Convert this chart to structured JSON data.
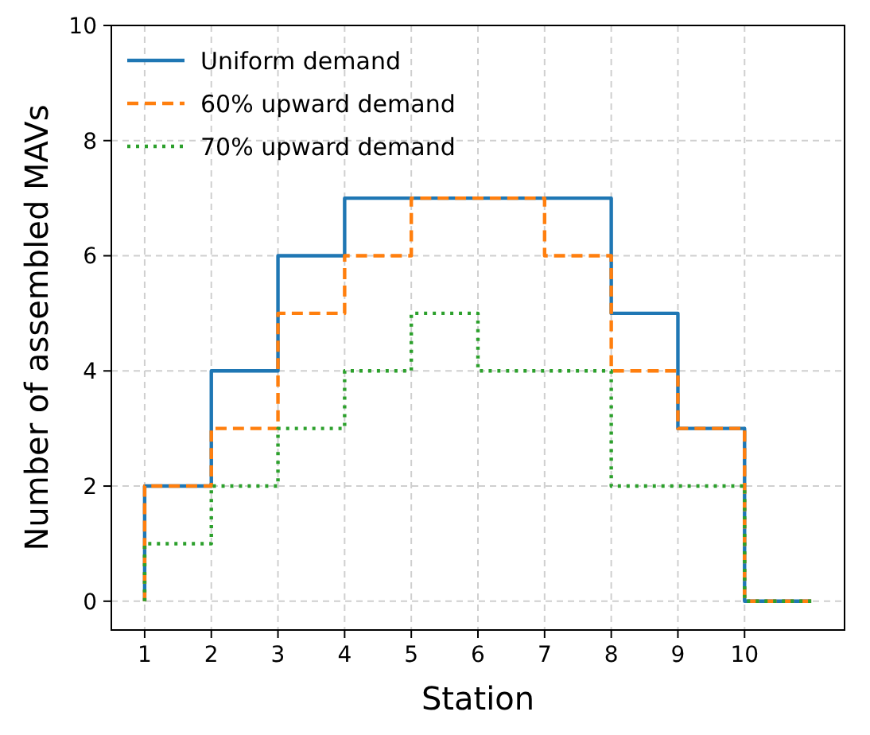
{
  "chart_data": {
    "type": "step",
    "xlabel": "Station",
    "ylabel": "Number of assembled MAVs",
    "x": [
      1,
      1,
      2,
      3,
      4,
      5,
      6,
      7,
      8,
      9,
      10,
      11
    ],
    "series": [
      {
        "name": "Uniform demand",
        "color": "#1f77b4",
        "line_style": "solid",
        "values": [
          0,
          2,
          4,
          6,
          7,
          7,
          7,
          7,
          5,
          3,
          0,
          0
        ]
      },
      {
        "name": "60% upward demand",
        "color": "#ff7f0e",
        "line_style": "dashed",
        "values": [
          0,
          2,
          3,
          5,
          6,
          7,
          7,
          6,
          4,
          3,
          0,
          0
        ]
      },
      {
        "name": "70% upward demand",
        "color": "#2ca02c",
        "line_style": "dotted",
        "values": [
          0,
          1,
          2,
          3,
          4,
          5,
          4,
          4,
          2,
          2,
          0,
          0
        ]
      }
    ],
    "xlim": [
      0.5,
      11.5
    ],
    "xticks": [
      1,
      2,
      3,
      4,
      5,
      6,
      7,
      8,
      9,
      10
    ],
    "ylim": [
      -0.5,
      10
    ],
    "yticks": [
      0,
      2,
      4,
      6,
      8,
      10
    ],
    "grid": true,
    "legend": "top left"
  }
}
